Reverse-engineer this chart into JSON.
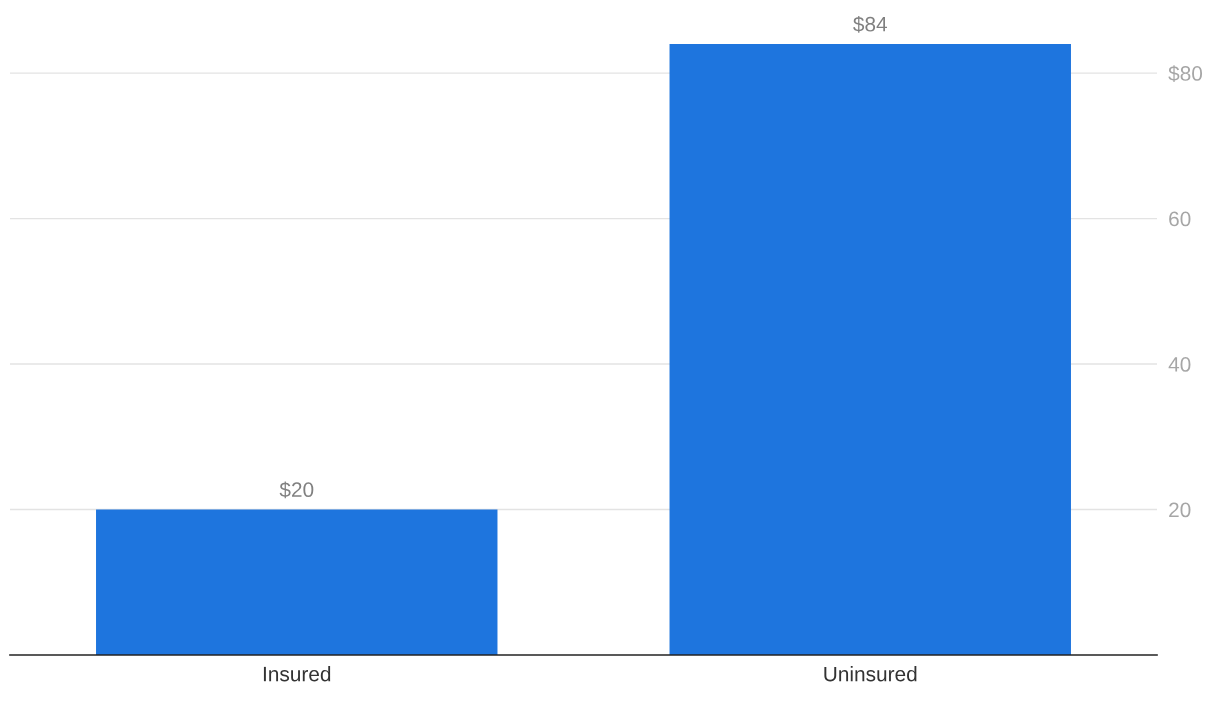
{
  "chart_data": {
    "type": "bar",
    "categories": [
      "Insured",
      "Uninsured"
    ],
    "values": [
      20,
      84
    ],
    "color": "#1e75de",
    "value_labels": [
      "$20",
      "$84"
    ],
    "ylim": [
      0,
      84
    ],
    "yticks": [
      20,
      40,
      60,
      {
        "value": 80,
        "label": "$80"
      }
    ],
    "grid": "y"
  }
}
